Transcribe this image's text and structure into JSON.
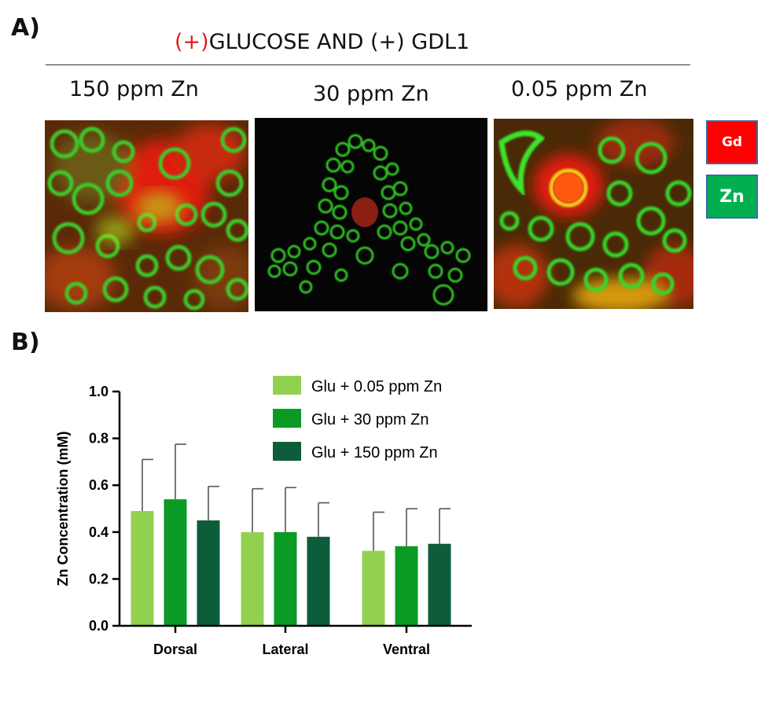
{
  "panels": {
    "a_label": "A)",
    "b_label": "B)"
  },
  "header": {
    "prefix": "(+)",
    "rest": "GLUCOSE AND (+) GDL1"
  },
  "images": [
    {
      "label": "150 ppm Zn"
    },
    {
      "label": "30 ppm Zn"
    },
    {
      "label": "0.05 ppm Zn"
    }
  ],
  "channel_legend": [
    {
      "label": "Gd",
      "color": "#ff0000"
    },
    {
      "label": "Zn",
      "color": "#00b050"
    }
  ],
  "chart_data": {
    "type": "bar",
    "categories": [
      "Dorsal",
      "Lateral",
      "Ventral"
    ],
    "ylabel": "Zn Concentration (mM)",
    "ylim": [
      0,
      1.0
    ],
    "yticks": [
      "0.0",
      "0.2",
      "0.4",
      "0.6",
      "0.8",
      "1.0"
    ],
    "grid": false,
    "legend_position": "top-right",
    "series": [
      {
        "name": "Glu + 0.05 ppm Zn",
        "color": "#92d050",
        "values": [
          0.49,
          0.4,
          0.32
        ],
        "errors": [
          0.22,
          0.185,
          0.165
        ]
      },
      {
        "name": "Glu + 30 ppm Zn",
        "color": "#0b9a24",
        "values": [
          0.54,
          0.4,
          0.34
        ],
        "errors": [
          0.235,
          0.19,
          0.16
        ]
      },
      {
        "name": "Glu + 150 ppm Zn",
        "color": "#0d5c3a",
        "values": [
          0.45,
          0.38,
          0.35
        ],
        "errors": [
          0.145,
          0.145,
          0.15
        ]
      }
    ]
  }
}
